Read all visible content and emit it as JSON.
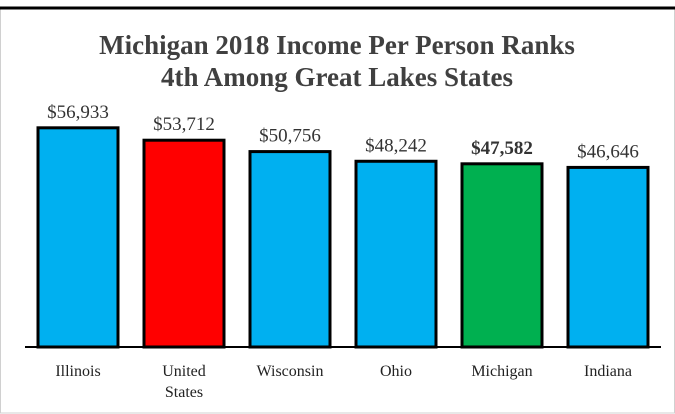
{
  "chart_data": {
    "type": "bar",
    "title": "Michigan 2018 Income Per Person Ranks",
    "subtitle": "4th Among Great Lakes States",
    "categories": [
      "Illinois",
      "United States",
      "Wisconsin",
      "Ohio",
      "Michigan",
      "Indiana"
    ],
    "values": [
      56933,
      53712,
      50756,
      48242,
      47582,
      46646
    ],
    "value_labels": [
      "$56,933",
      "$53,712",
      "$50,756",
      "$48,242",
      "$47,582",
      "$46,646"
    ],
    "value_label_weights": [
      "normal",
      "normal",
      "normal",
      "normal",
      "bold",
      "normal"
    ],
    "colors": [
      "#00b0f0",
      "#ff0000",
      "#00b0f0",
      "#00b0f0",
      "#00b050",
      "#00b0f0"
    ],
    "ylim": [
      0,
      60000
    ]
  }
}
